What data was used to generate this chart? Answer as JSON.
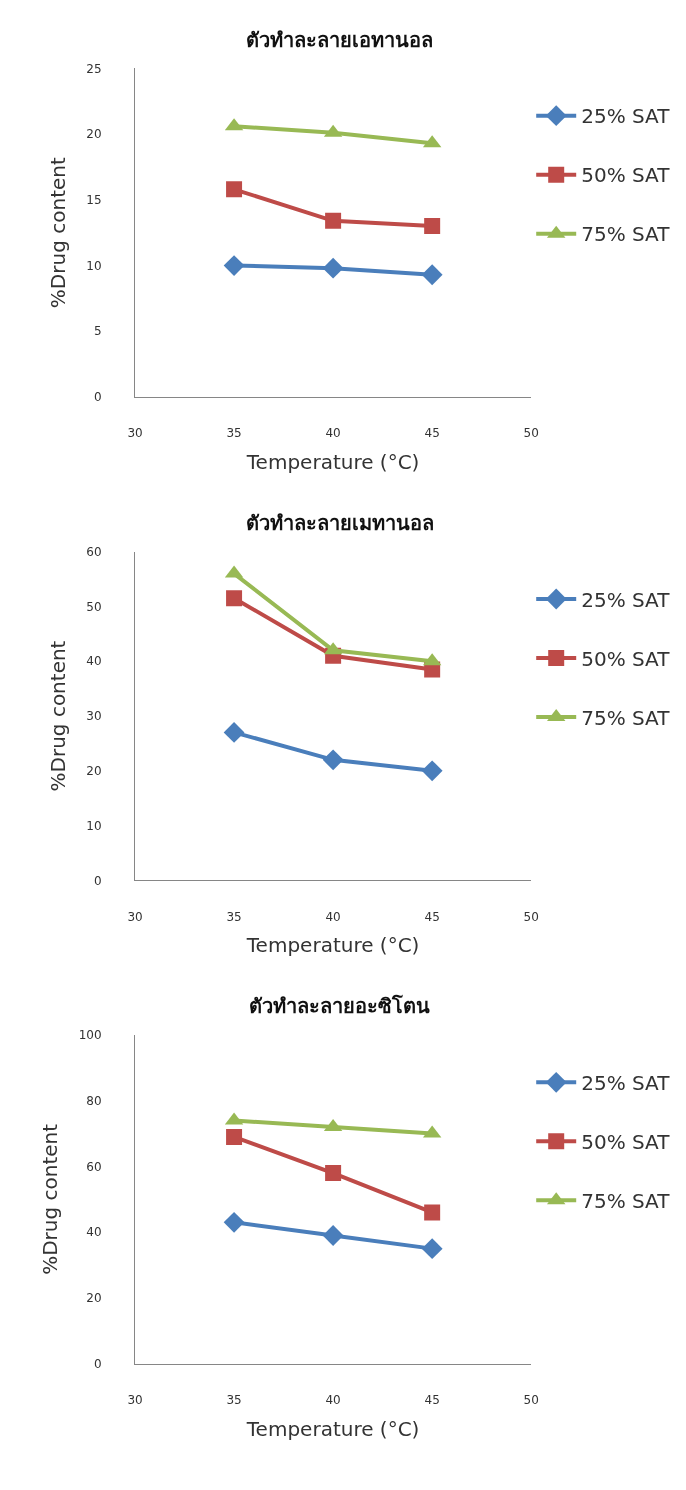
{
  "chart_data": [
    {
      "type": "line",
      "title": "ตัวทำละลายเอทานอล",
      "xlabel": "Temperature (°C)",
      "ylabel": "%Drug content",
      "x": [
        35,
        40,
        45
      ],
      "xlim": [
        30,
        50
      ],
      "xticks": [
        30,
        35,
        40,
        45,
        50
      ],
      "ylim": [
        0,
        25
      ],
      "yticks": [
        0,
        5,
        10,
        15,
        20,
        25
      ],
      "legend": "right",
      "series": [
        {
          "name": "25% SAT",
          "color": "#4a7ebb",
          "marker": "diamond",
          "values": [
            10.0,
            9.8,
            9.3
          ]
        },
        {
          "name": "50% SAT",
          "color": "#be4b48",
          "marker": "square",
          "values": [
            15.8,
            13.4,
            13.0
          ]
        },
        {
          "name": "75% SAT",
          "color": "#98b954",
          "marker": "triangle",
          "values": [
            20.6,
            20.1,
            19.3
          ]
        }
      ]
    },
    {
      "type": "line",
      "title": "ตัวทำละลายเมทานอล",
      "xlabel": "Temperature (°C)",
      "ylabel": "%Drug content",
      "x": [
        35,
        40,
        45
      ],
      "xlim": [
        30,
        50
      ],
      "xticks": [
        30,
        35,
        40,
        45,
        50
      ],
      "ylim": [
        0,
        60
      ],
      "yticks": [
        0,
        10,
        20,
        30,
        40,
        50,
        60
      ],
      "legend": "right",
      "series": [
        {
          "name": "25% SAT",
          "color": "#4a7ebb",
          "marker": "diamond",
          "values": [
            27,
            22,
            20
          ]
        },
        {
          "name": "50% SAT",
          "color": "#be4b48",
          "marker": "square",
          "values": [
            51.5,
            41,
            38.5
          ]
        },
        {
          "name": "75% SAT",
          "color": "#98b954",
          "marker": "triangle",
          "values": [
            56,
            42,
            40
          ]
        }
      ]
    },
    {
      "type": "line",
      "title": "ตัวทำละลายอะซิโตน",
      "xlabel": "Temperature (°C)",
      "ylabel": "%Drug content",
      "x": [
        35,
        40,
        45
      ],
      "xlim": [
        30,
        50
      ],
      "xticks": [
        30,
        35,
        40,
        45,
        50
      ],
      "ylim": [
        0,
        100
      ],
      "yticks": [
        0,
        20,
        40,
        60,
        80,
        100
      ],
      "legend": "right",
      "series": [
        {
          "name": "25% SAT",
          "color": "#4a7ebb",
          "marker": "diamond",
          "values": [
            43,
            39,
            35
          ]
        },
        {
          "name": "50% SAT",
          "color": "#be4b48",
          "marker": "square",
          "values": [
            69,
            58,
            46
          ]
        },
        {
          "name": "75% SAT",
          "color": "#98b954",
          "marker": "triangle",
          "values": [
            74,
            72,
            70
          ]
        }
      ]
    }
  ]
}
